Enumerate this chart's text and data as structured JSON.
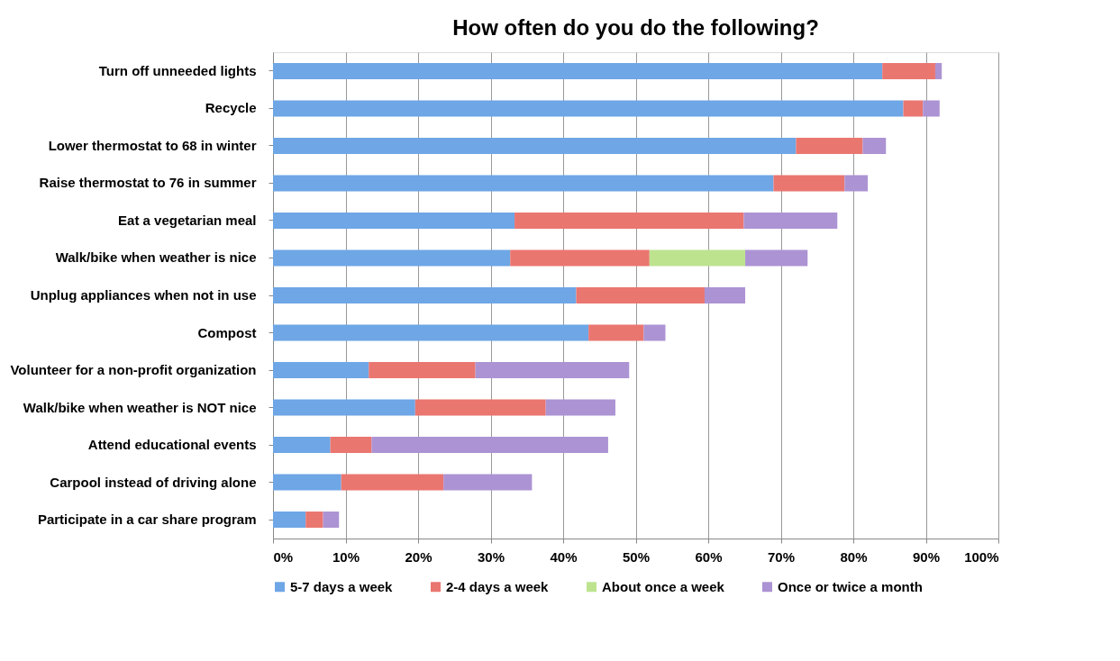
{
  "chart_data": {
    "type": "bar",
    "orientation": "horizontal",
    "stacked": true,
    "title": "How often do you do the following?",
    "categories": [
      "Turn off unneeded lights",
      "Recycle",
      "Lower thermostat to 68 in winter",
      "Raise thermostat to 76 in summer",
      "Eat a vegetarian meal",
      "Walk/bike when weather is nice",
      "Unplug appliances when not in use",
      "Compost",
      "Volunteer for a non-profit organization",
      "Walk/bike when weather is NOT nice",
      "Attend educational events",
      "Carpool instead of driving alone",
      "Participate in a car share program"
    ],
    "series": [
      {
        "name": "5-7 days a week",
        "color": "#6ea6e6",
        "values": [
          84.0,
          86.9,
          72.1,
          69.0,
          33.3,
          32.7,
          41.8,
          43.5,
          13.2,
          19.6,
          7.9,
          9.4,
          4.5
        ]
      },
      {
        "name": "2-4 days a week",
        "color": "#ea7670",
        "values": [
          7.3,
          2.7,
          9.2,
          9.8,
          31.6,
          19.2,
          17.7,
          7.6,
          14.7,
          18.0,
          5.7,
          14.1,
          2.4
        ]
      },
      {
        "name": "About once a week",
        "color": "#bde38f",
        "values": [
          null,
          null,
          null,
          null,
          null,
          13.2,
          null,
          null,
          null,
          null,
          null,
          null,
          null
        ]
      },
      {
        "name": "Once or twice a month",
        "color": "#ac93d3",
        "values": [
          0.9,
          2.3,
          3.2,
          3.2,
          12.9,
          8.6,
          5.6,
          3.0,
          21.2,
          9.6,
          32.6,
          12.2,
          2.2
        ]
      }
    ],
    "xlim": [
      0,
      100
    ],
    "xticks": [
      {
        "value": 0,
        "label": "0%"
      },
      {
        "value": 10,
        "label": "10%"
      },
      {
        "value": 20,
        "label": "20%"
      },
      {
        "value": 30,
        "label": "30%"
      },
      {
        "value": 40,
        "label": "40%"
      },
      {
        "value": 50,
        "label": "50%"
      },
      {
        "value": 60,
        "label": "60%"
      },
      {
        "value": 70,
        "label": "70%"
      },
      {
        "value": 80,
        "label": "80%"
      },
      {
        "value": 90,
        "label": "90%"
      },
      {
        "value": 100,
        "label": "100%"
      }
    ],
    "grid": "x",
    "legend": "bottom"
  }
}
